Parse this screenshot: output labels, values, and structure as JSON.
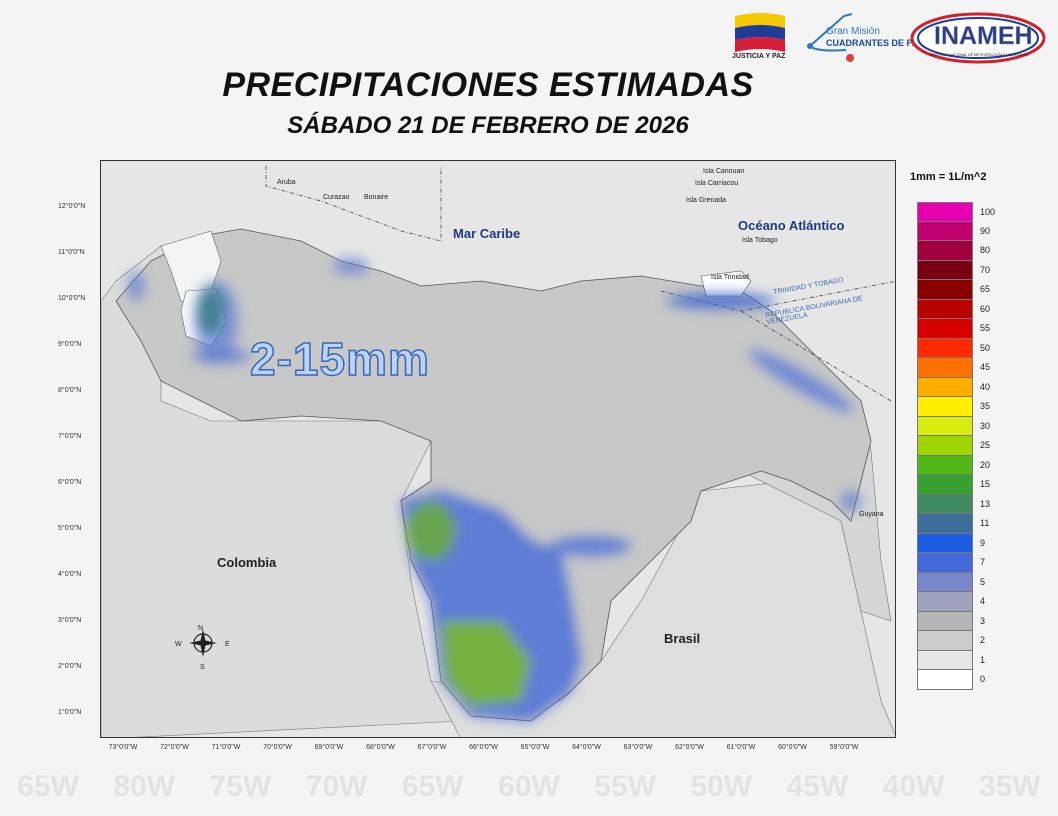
{
  "header": {
    "title": "PRECIPITACIONES ESTIMADAS",
    "subtitle": "SÁBADO  21 DE FEBRERO DE 2026"
  },
  "logos": {
    "justicia": "JUSTICIA Y PAZ",
    "cuadrantes_top": "Gran Misión",
    "cuadrantes_bottom": "CUADRANTES DE PAZ",
    "inameh": "INAMEH",
    "inameh_sub": "INSTITUTO NACIONAL DE METEOROLOGÍA E HIDROLOGÍA"
  },
  "map": {
    "annotation": "2-15mm",
    "labels": {
      "mar_caribe": "Mar Caribe",
      "oceano": "Océano Atlántico",
      "colombia": "Colombia",
      "brasil": "Brasil",
      "guyana": "Guyana",
      "aruba": "Aruba",
      "curazao": "Curazao",
      "bonaire": "Bonaire",
      "canouan": "Isla Canouan",
      "carriacou": "Isla Carriacou",
      "grenada": "Isla Grenada",
      "tobago": "Isla Tobago",
      "trinidad": "Isla Trinidad",
      "border1": "TRINIDAD Y TOBAGO",
      "border2": "REPUBLICA BOLIVARIANA DE VENEZUELA"
    },
    "compass": {
      "n": "N",
      "s": "S",
      "e": "E",
      "w": "W"
    },
    "lat_labels": [
      "12°0'0\"N",
      "11°0'0\"N",
      "10°0'0\"N",
      "9°0'0\"N",
      "8°0'0\"N",
      "7°0'0\"N",
      "6°0'0\"N",
      "5°0'0\"N",
      "4°0'0\"N",
      "3°0'0\"N",
      "2°0'0\"N",
      "1°0'0\"N"
    ],
    "lon_labels": [
      "73°0'0\"W",
      "72°0'0\"W",
      "71°0'0\"W",
      "70°0'0\"W",
      "69°0'0\"W",
      "68°0'0\"W",
      "67°0'0\"W",
      "66°0'0\"W",
      "65°0'0\"W",
      "64°0'0\"W",
      "63°0'0\"W",
      "62°0'0\"W",
      "61°0'0\"W",
      "60°0'0\"W",
      "59°0'0\"W"
    ],
    "background_labels": [
      "65W",
      "80W",
      "75W",
      "70W",
      "65W",
      "60W",
      "55W",
      "50W",
      "45W",
      "40W",
      "35W"
    ]
  },
  "legend": {
    "title": "1mm = 1L/m^2",
    "items": [
      {
        "label": "100",
        "color": "#e800b0"
      },
      {
        "label": "90",
        "color": "#c0006e"
      },
      {
        "label": "80",
        "color": "#a00040"
      },
      {
        "label": "70",
        "color": "#780010"
      },
      {
        "label": "65",
        "color": "#8a0000"
      },
      {
        "label": "60",
        "color": "#b80000"
      },
      {
        "label": "55",
        "color": "#d80000"
      },
      {
        "label": "50",
        "color": "#ff2a00"
      },
      {
        "label": "45",
        "color": "#ff7000"
      },
      {
        "label": "40",
        "color": "#ffae00"
      },
      {
        "label": "35",
        "color": "#ffee00"
      },
      {
        "label": "30",
        "color": "#d8ec10"
      },
      {
        "label": "25",
        "color": "#9ed400"
      },
      {
        "label": "20",
        "color": "#52b818"
      },
      {
        "label": "15",
        "color": "#37a030"
      },
      {
        "label": "13",
        "color": "#3f8a60"
      },
      {
        "label": "11",
        "color": "#3d6e9c"
      },
      {
        "label": "9",
        "color": "#1c5ce0"
      },
      {
        "label": "7",
        "color": "#4468d8"
      },
      {
        "label": "5",
        "color": "#7886cc"
      },
      {
        "label": "4",
        "color": "#9ea2bc"
      },
      {
        "label": "3",
        "color": "#b6b6b6"
      },
      {
        "label": "2",
        "color": "#cccccc"
      },
      {
        "label": "1",
        "color": "#e6e6e6"
      },
      {
        "label": "0",
        "color": "#ffffff"
      }
    ]
  }
}
